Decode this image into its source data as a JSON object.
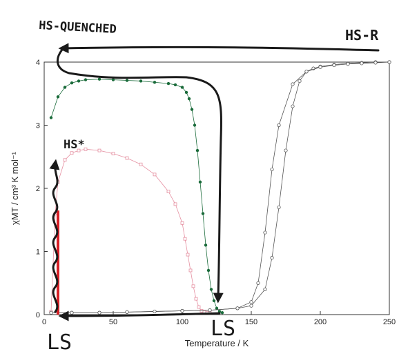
{
  "chart_data": {
    "type": "scatter",
    "xlabel": "Temperature / K",
    "ylabel": "χMT / cm³ K mol⁻¹",
    "xlim": [
      0,
      250
    ],
    "ylim": [
      0,
      4
    ],
    "xticks": [
      "0",
      "50",
      "100",
      "150",
      "200",
      "250"
    ],
    "yticks": [
      "0",
      "1",
      "2",
      "3",
      "4"
    ],
    "grid": false,
    "series": [
      {
        "color": "#1a6b3a",
        "marker": "filled-circle",
        "x": [
          5,
          10,
          15,
          20,
          25,
          30,
          40,
          50,
          60,
          70,
          80,
          90,
          95,
          100,
          103,
          105,
          107,
          109,
          111,
          113,
          115,
          117,
          119,
          121,
          123,
          125,
          127,
          129
        ],
        "y": [
          3.12,
          3.45,
          3.6,
          3.67,
          3.7,
          3.72,
          3.73,
          3.72,
          3.71,
          3.7,
          3.68,
          3.66,
          3.64,
          3.6,
          3.52,
          3.42,
          3.25,
          3.0,
          2.6,
          2.1,
          1.6,
          1.1,
          0.7,
          0.4,
          0.22,
          0.1,
          0.05,
          0.03
        ]
      },
      {
        "color": "#e58fa0",
        "marker": "open-square",
        "x": [
          5,
          8,
          10,
          15,
          20,
          25,
          30,
          40,
          50,
          60,
          70,
          80,
          90,
          95,
          100,
          102,
          104,
          106,
          108,
          110,
          112,
          114,
          116,
          118,
          120
        ],
        "y": [
          0.05,
          1.6,
          2.1,
          2.45,
          2.56,
          2.6,
          2.62,
          2.6,
          2.55,
          2.48,
          2.38,
          2.22,
          1.95,
          1.75,
          1.45,
          1.2,
          0.95,
          0.7,
          0.45,
          0.25,
          0.12,
          0.06,
          0.04,
          0.03,
          0.03
        ]
      },
      {
        "color": "#555555",
        "marker": "open-circle",
        "x": [
          5,
          20,
          40,
          60,
          80,
          100,
          120,
          140,
          150,
          160,
          165,
          170,
          175,
          180,
          185,
          190,
          195,
          200,
          210,
          220,
          230,
          240,
          250
        ],
        "y": [
          0.03,
          0.03,
          0.03,
          0.04,
          0.05,
          0.06,
          0.07,
          0.1,
          0.14,
          0.4,
          0.9,
          1.7,
          2.6,
          3.3,
          3.7,
          3.85,
          3.9,
          3.93,
          3.96,
          3.98,
          3.99,
          4.0,
          4.0
        ]
      },
      {
        "color": "#555555",
        "marker": "open-circle",
        "x": [
          5,
          20,
          40,
          60,
          80,
          100,
          120,
          140,
          150,
          155,
          160,
          165,
          170,
          180,
          190,
          200,
          210,
          220,
          230,
          240,
          250
        ],
        "y": [
          0.03,
          0.03,
          0.03,
          0.04,
          0.05,
          0.06,
          0.07,
          0.1,
          0.2,
          0.5,
          1.3,
          2.3,
          3.0,
          3.65,
          3.85,
          3.92,
          3.95,
          3.97,
          3.98,
          3.99,
          4.0
        ]
      }
    ],
    "red_bar": {
      "x": 10,
      "y_from": 0.0,
      "y_to": 1.65,
      "color": "#d61f26"
    },
    "annotations": [
      "HS-QUENCHED",
      "HS-R",
      "HS*",
      "LS",
      "LS"
    ]
  }
}
